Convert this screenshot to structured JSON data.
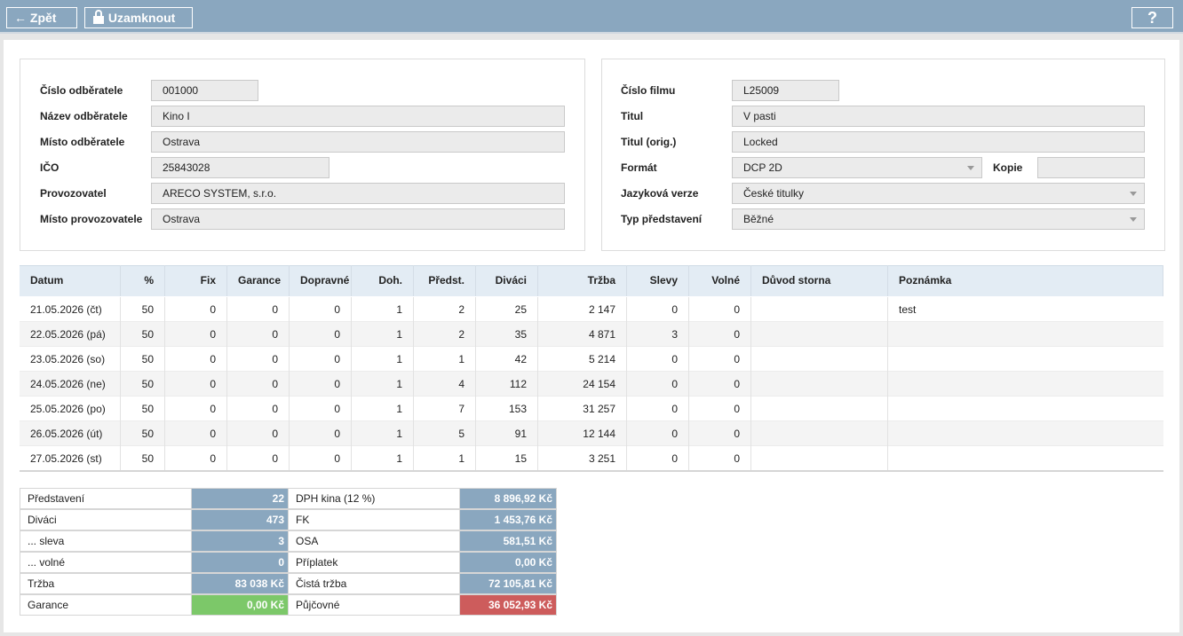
{
  "toolbar": {
    "back": "Zpět",
    "lock": "Uzamknout",
    "help": "?"
  },
  "customer": {
    "fields": [
      {
        "label": "Číslo odběratele",
        "value": "001000"
      },
      {
        "label": "Název odběratele",
        "value": "Kino I"
      },
      {
        "label": "Místo odběratele",
        "value": "Ostrava"
      },
      {
        "label": "IČO",
        "value": "25843028"
      },
      {
        "label": "Provozovatel",
        "value": "ARECO SYSTEM, s.r.o."
      },
      {
        "label": "Místo provozovatele",
        "value": "Ostrava"
      }
    ]
  },
  "film": {
    "fields": [
      {
        "label": "Číslo filmu",
        "value": "L25009"
      },
      {
        "label": "Titul",
        "value": "V pasti"
      },
      {
        "label": "Titul (orig.)",
        "value": "Locked"
      },
      {
        "label": "Formát",
        "value": "DCP 2D"
      },
      {
        "label": "Jazyková verze",
        "value": "České titulky"
      },
      {
        "label": "Typ představení",
        "value": "Běžné"
      }
    ],
    "copies_label": "Kopie"
  },
  "table": {
    "columns": [
      "Datum",
      "%",
      "Fix",
      "Garance",
      "Dopravné",
      "Doh.",
      "Předst.",
      "Diváci",
      "Tržba",
      "Slevy",
      "Volné",
      "Důvod storna",
      "Poznámka"
    ],
    "rows": [
      {
        "cells": [
          "21.05.2026 (čt)",
          50,
          0,
          0,
          0,
          1,
          2,
          25,
          "2 147",
          0,
          0
        ],
        "note": "test"
      },
      {
        "cells": [
          "22.05.2026 (pá)",
          50,
          0,
          0,
          0,
          1,
          2,
          35,
          "4 871",
          3,
          0
        ]
      },
      {
        "cells": [
          "23.05.2026 (so)",
          50,
          0,
          0,
          0,
          1,
          1,
          42,
          "5 214",
          0,
          0
        ]
      },
      {
        "cells": [
          "24.05.2026 (ne)",
          50,
          0,
          0,
          0,
          1,
          4,
          112,
          "24 154",
          0,
          0
        ]
      },
      {
        "cells": [
          "25.05.2026 (po)",
          50,
          0,
          0,
          0,
          1,
          7,
          153,
          "31 257",
          0,
          0
        ]
      },
      {
        "cells": [
          "26.05.2026 (út)",
          50,
          0,
          0,
          0,
          1,
          5,
          91,
          "12 144",
          0,
          0
        ]
      },
      {
        "cells": [
          "27.05.2026 (st)",
          50,
          0,
          0,
          0,
          1,
          1,
          15,
          "3 251",
          0,
          0
        ]
      }
    ]
  },
  "summary": {
    "rows": [
      [
        "Představení",
        "22",
        "DPH kina (12 %)",
        "8 896,92 Kč"
      ],
      [
        "Diváci",
        "473",
        "FK",
        "1 453,76 Kč"
      ],
      [
        "... sleva",
        "3",
        "OSA",
        "581,51 Kč"
      ],
      [
        "... volné",
        "0",
        "Příplatek",
        "0,00 Kč"
      ],
      [
        "Tržba",
        "83 038 Kč",
        "Čistá tržba",
        "72 105,81 Kč"
      ],
      [
        "Garance",
        "0,00 Kč",
        "Půjčovné",
        "36 052,93 Kč"
      ]
    ]
  }
}
